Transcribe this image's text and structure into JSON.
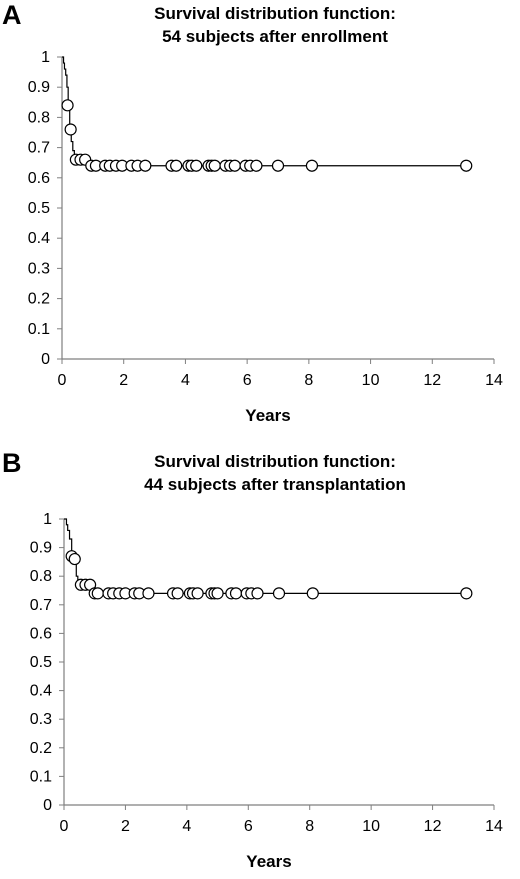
{
  "panels": [
    {
      "letter": "A",
      "title_line1": "Survival distribution function:",
      "title_line2": "54 subjects after enrollment"
    },
    {
      "letter": "B",
      "title_line1": "Survival distribution function:",
      "title_line2": "44 subjects after transplantation"
    }
  ],
  "chart_data": [
    {
      "type": "line",
      "title": "Survival distribution function: 54 subjects after enrollment",
      "xlabel": "Years",
      "ylabel": "",
      "xlim": [
        0,
        14
      ],
      "ylim": [
        0,
        1
      ],
      "x_ticks": [
        0,
        2,
        4,
        6,
        8,
        10,
        12,
        14
      ],
      "y_ticks": [
        0,
        0.1,
        0.2,
        0.3,
        0.4,
        0.5,
        0.6,
        0.7,
        0.8,
        0.9,
        1
      ],
      "grid": false,
      "step_curve": {
        "x": [
          0,
          0.05,
          0.08,
          0.12,
          0.16,
          0.2,
          0.25,
          0.3,
          0.35,
          0.4,
          0.5,
          0.7,
          0.85,
          1.0,
          13.1
        ],
        "y": [
          1.0,
          0.98,
          0.96,
          0.94,
          0.9,
          0.84,
          0.76,
          0.72,
          0.69,
          0.66,
          0.66,
          0.66,
          0.65,
          0.64,
          0.64
        ]
      },
      "censored_points": {
        "x": [
          0.18,
          0.28,
          0.45,
          0.6,
          0.75,
          0.95,
          1.1,
          1.4,
          1.55,
          1.75,
          1.95,
          2.25,
          2.45,
          2.7,
          3.55,
          3.7,
          4.1,
          4.2,
          4.35,
          4.75,
          4.85,
          4.95,
          5.3,
          5.45,
          5.6,
          5.95,
          6.1,
          6.3,
          7.0,
          8.1,
          13.1
        ],
        "y": [
          0.84,
          0.76,
          0.66,
          0.66,
          0.66,
          0.64,
          0.64,
          0.64,
          0.64,
          0.64,
          0.64,
          0.64,
          0.64,
          0.64,
          0.64,
          0.64,
          0.64,
          0.64,
          0.64,
          0.64,
          0.64,
          0.64,
          0.64,
          0.64,
          0.64,
          0.64,
          0.64,
          0.64,
          0.64,
          0.64,
          0.64
        ]
      }
    },
    {
      "type": "line",
      "title": "Survival distribution function: 44 subjects after transplantation",
      "xlabel": "Years",
      "ylabel": "",
      "xlim": [
        0,
        14
      ],
      "ylim": [
        0,
        1
      ],
      "x_ticks": [
        0,
        2,
        4,
        6,
        8,
        10,
        12,
        14
      ],
      "y_ticks": [
        0,
        0.1,
        0.2,
        0.3,
        0.4,
        0.5,
        0.6,
        0.7,
        0.8,
        0.9,
        1
      ],
      "grid": false,
      "step_curve": {
        "x": [
          0,
          0.08,
          0.12,
          0.18,
          0.25,
          0.32,
          0.4,
          0.45,
          0.55,
          0.7,
          0.85,
          0.95,
          13.1
        ],
        "y": [
          1.0,
          0.98,
          0.96,
          0.93,
          0.87,
          0.85,
          0.8,
          0.77,
          0.77,
          0.77,
          0.75,
          0.74,
          0.74
        ]
      },
      "censored_points": {
        "x": [
          0.25,
          0.35,
          0.55,
          0.7,
          0.85,
          1.0,
          1.1,
          1.45,
          1.6,
          1.8,
          2.0,
          2.3,
          2.45,
          2.75,
          3.55,
          3.7,
          4.1,
          4.2,
          4.35,
          4.8,
          4.9,
          5.0,
          5.45,
          5.6,
          5.95,
          6.1,
          6.3,
          7.0,
          8.1,
          13.1
        ],
        "y": [
          0.87,
          0.86,
          0.77,
          0.77,
          0.77,
          0.74,
          0.74,
          0.74,
          0.74,
          0.74,
          0.74,
          0.74,
          0.74,
          0.74,
          0.74,
          0.74,
          0.74,
          0.74,
          0.74,
          0.74,
          0.74,
          0.74,
          0.74,
          0.74,
          0.74,
          0.74,
          0.74,
          0.74,
          0.74,
          0.74
        ]
      }
    }
  ]
}
